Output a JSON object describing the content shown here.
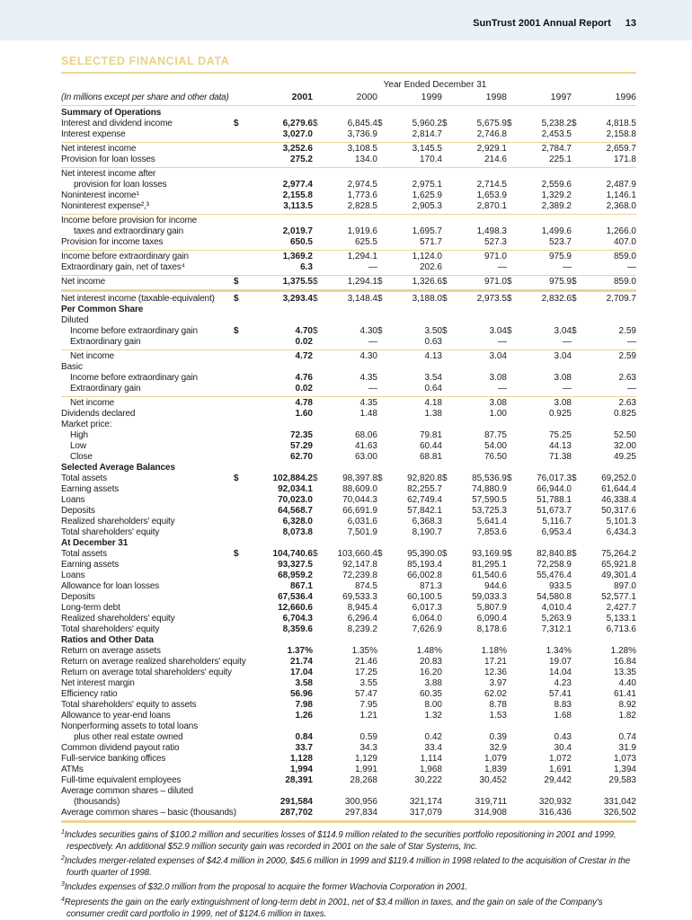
{
  "page": {
    "report_title": "SunTrust 2001 Annual Report",
    "page_number": "13"
  },
  "heading": "SELECTED FINANCIAL DATA",
  "table": {
    "period_label": "Year Ended December 31",
    "unit_note": "(In millions except per share and other data)",
    "years": [
      "2001",
      "2000",
      "1999",
      "1998",
      "1997",
      "1996"
    ],
    "rows": [
      {
        "type": "section",
        "label": "Summary of Operations"
      },
      {
        "type": "data",
        "label": "Interest and dividend income",
        "values": [
          "$ 6,279.6",
          "$ 6,845.4",
          "$ 5,960.2",
          "$ 5,675.9",
          "$ 5,238.2",
          "$ 4,818.5"
        ]
      },
      {
        "type": "data",
        "label": "Interest expense",
        "values": [
          "3,027.0",
          "3,736.9",
          "2,814.7",
          "2,746.8",
          "2,453.5",
          "2,158.8"
        ]
      },
      {
        "type": "rule",
        "weight": "thin"
      },
      {
        "type": "data",
        "label": "Net interest income",
        "values": [
          "3,252.6",
          "3,108.5",
          "3,145.5",
          "2,929.1",
          "2,784.7",
          "2,659.7"
        ]
      },
      {
        "type": "data",
        "label": "Provision for loan losses",
        "values": [
          "275.2",
          "134.0",
          "170.4",
          "214.6",
          "225.1",
          "171.8"
        ]
      },
      {
        "type": "rule",
        "weight": "thin"
      },
      {
        "type": "data",
        "label": "Net interest income after",
        "label2": "provision for loan losses",
        "values": [
          "2,977.4",
          "2,974.5",
          "2,975.1",
          "2,714.5",
          "2,559.6",
          "2,487.9"
        ]
      },
      {
        "type": "data",
        "label": "Noninterest income¹",
        "values": [
          "2,155.8",
          "1,773.6",
          "1,625.9",
          "1,653.9",
          "1,329.2",
          "1,146.1"
        ]
      },
      {
        "type": "data",
        "label": "Noninterest expense²,³",
        "values": [
          "3,113.5",
          "2,828.5",
          "2,905.3",
          "2,870.1",
          "2,389.2",
          "2,368.0"
        ]
      },
      {
        "type": "rule",
        "weight": "thin"
      },
      {
        "type": "data",
        "label": "Income before provision for income",
        "label2": "taxes and extraordinary gain",
        "values": [
          "2,019.7",
          "1,919.6",
          "1,695.7",
          "1,498.3",
          "1,499.6",
          "1,266.0"
        ]
      },
      {
        "type": "data",
        "label": "Provision for income taxes",
        "values": [
          "650.5",
          "625.5",
          "571.7",
          "527.3",
          "523.7",
          "407.0"
        ]
      },
      {
        "type": "rule",
        "weight": "thin"
      },
      {
        "type": "data",
        "label": "Income before extraordinary gain",
        "values": [
          "1,369.2",
          "1,294.1",
          "1,124.0",
          "971.0",
          "975.9",
          "859.0"
        ]
      },
      {
        "type": "data",
        "label": "Extraordinary gain, net of taxes⁴",
        "values": [
          "6.3",
          "—",
          "202.6",
          "—",
          "—",
          "—"
        ]
      },
      {
        "type": "rule",
        "weight": "thin"
      },
      {
        "type": "data",
        "label": "Net income",
        "values": [
          "$ 1,375.5",
          "$ 1,294.1",
          "$ 1,326.6",
          "$ 971.0",
          "$ 975.9",
          "$ 859.0"
        ]
      },
      {
        "type": "rule",
        "weight": "thick"
      },
      {
        "type": "data",
        "label": "Net interest income (taxable-equivalent)",
        "values": [
          "$ 3,293.4",
          "$ 3,148.4",
          "$ 3,188.0",
          "$ 2,973.5",
          "$ 2,832.6",
          "$ 2,709.7"
        ]
      },
      {
        "type": "section",
        "label": "Per Common Share"
      },
      {
        "type": "plain",
        "label": "Diluted"
      },
      {
        "type": "data",
        "indent": 1,
        "label": "Income before extraordinary gain",
        "values": [
          "$ 4.70",
          "$ 4.30",
          "$ 3.50",
          "$ 3.04",
          "$ 3.04",
          "$ 2.59"
        ]
      },
      {
        "type": "data",
        "indent": 1,
        "label": "Extraordinary gain",
        "values": [
          "0.02",
          "—",
          "0.63",
          "—",
          "—",
          "—"
        ]
      },
      {
        "type": "rule",
        "weight": "thin"
      },
      {
        "type": "data",
        "indent": 1,
        "label": "Net income",
        "values": [
          "4.72",
          "4.30",
          "4.13",
          "3.04",
          "3.04",
          "2.59"
        ]
      },
      {
        "type": "plain",
        "label": "Basic"
      },
      {
        "type": "data",
        "indent": 1,
        "label": "Income before extraordinary gain",
        "values": [
          "4.76",
          "4.35",
          "3.54",
          "3.08",
          "3.08",
          "2.63"
        ]
      },
      {
        "type": "data",
        "indent": 1,
        "label": "Extraordinary gain",
        "values": [
          "0.02",
          "—",
          "0.64",
          "—",
          "—",
          "—"
        ]
      },
      {
        "type": "rule",
        "weight": "thin"
      },
      {
        "type": "data",
        "indent": 1,
        "label": "Net income",
        "values": [
          "4.78",
          "4.35",
          "4.18",
          "3.08",
          "3.08",
          "2.63"
        ]
      },
      {
        "type": "data",
        "label": "Dividends declared",
        "values": [
          "1.60",
          "1.48",
          "1.38",
          "1.00",
          "0.925",
          "0.825"
        ]
      },
      {
        "type": "plain",
        "label": "Market price:"
      },
      {
        "type": "data",
        "indent": 1,
        "label": "High",
        "values": [
          "72.35",
          "68.06",
          "79.81",
          "87.75",
          "75.25",
          "52.50"
        ]
      },
      {
        "type": "data",
        "indent": 1,
        "label": "Low",
        "values": [
          "57.29",
          "41.63",
          "60.44",
          "54.00",
          "44.13",
          "32.00"
        ]
      },
      {
        "type": "data",
        "indent": 1,
        "label": "Close",
        "values": [
          "62.70",
          "63.00",
          "68.81",
          "76.50",
          "71.38",
          "49.25"
        ]
      },
      {
        "type": "section",
        "label": "Selected Average Balances"
      },
      {
        "type": "data",
        "label": "Total assets",
        "values": [
          "$102,884.2",
          "$ 98,397.8",
          "$92,820.8",
          "$85,536.9",
          "$76,017.3",
          "$69,252.0"
        ]
      },
      {
        "type": "data",
        "label": "Earning assets",
        "values": [
          "92,034.1",
          "88,609.0",
          "82,255.7",
          "74,880.9",
          "66,944.0",
          "61,644.4"
        ]
      },
      {
        "type": "data",
        "label": "Loans",
        "values": [
          "70,023.0",
          "70,044.3",
          "62,749.4",
          "57,590.5",
          "51,788.1",
          "46,338.4"
        ]
      },
      {
        "type": "data",
        "label": "Deposits",
        "values": [
          "64,568.7",
          "66,691.9",
          "57,842.1",
          "53,725.3",
          "51,673.7",
          "50,317.6"
        ]
      },
      {
        "type": "data",
        "label": "Realized shareholders' equity",
        "values": [
          "6,328.0",
          "6,031.6",
          "6,368.3",
          "5,641.4",
          "5,116.7",
          "5,101.3"
        ]
      },
      {
        "type": "data",
        "label": "Total shareholders' equity",
        "values": [
          "8,073.8",
          "7,501.9",
          "8,190.7",
          "7,853.6",
          "6,953.4",
          "6,434.3"
        ]
      },
      {
        "type": "section",
        "label": "At December 31"
      },
      {
        "type": "data",
        "label": "Total assets",
        "values": [
          "$104,740.6",
          "$103,660.4",
          "$95,390.0",
          "$93,169.9",
          "$82,840.8",
          "$75,264.2"
        ]
      },
      {
        "type": "data",
        "label": "Earning assets",
        "values": [
          "93,327.5",
          "92,147.8",
          "85,193.4",
          "81,295.1",
          "72,258.9",
          "65,921.8"
        ]
      },
      {
        "type": "data",
        "label": "Loans",
        "values": [
          "68,959.2",
          "72,239.8",
          "66,002.8",
          "61,540.6",
          "55,476.4",
          "49,301.4"
        ]
      },
      {
        "type": "data",
        "label": "Allowance for loan losses",
        "values": [
          "867.1",
          "874.5",
          "871.3",
          "944.6",
          "933.5",
          "897.0"
        ]
      },
      {
        "type": "data",
        "label": "Deposits",
        "values": [
          "67,536.4",
          "69,533.3",
          "60,100.5",
          "59,033.3",
          "54,580.8",
          "52,577.1"
        ]
      },
      {
        "type": "data",
        "label": "Long-term debt",
        "values": [
          "12,660.6",
          "8,945.4",
          "6,017.3",
          "5,807.9",
          "4,010.4",
          "2,427.7"
        ]
      },
      {
        "type": "data",
        "label": "Realized shareholders' equity",
        "values": [
          "6,704.3",
          "6,296.4",
          "6,064.0",
          "6,090.4",
          "5,263.9",
          "5,133.1"
        ]
      },
      {
        "type": "data",
        "label": "Total shareholders' equity",
        "values": [
          "8,359.6",
          "8,239.2",
          "7,626.9",
          "8,178.6",
          "7,312.1",
          "6,713.6"
        ]
      },
      {
        "type": "section",
        "label": "Ratios and Other Data"
      },
      {
        "type": "data",
        "label": "Return on average assets",
        "values": [
          "1.37%",
          "1.35%",
          "1.48%",
          "1.18%",
          "1.34%",
          "1.28%"
        ]
      },
      {
        "type": "data",
        "label": "Return on average realized shareholders' equity",
        "values": [
          "21.74",
          "21.46",
          "20.83",
          "17.21",
          "19.07",
          "16.84"
        ]
      },
      {
        "type": "data",
        "label": "Return on average total shareholders' equity",
        "values": [
          "17.04",
          "17.25",
          "16.20",
          "12.36",
          "14.04",
          "13.35"
        ]
      },
      {
        "type": "data",
        "label": "Net interest margin",
        "values": [
          "3.58",
          "3.55",
          "3.88",
          "3.97",
          "4.23",
          "4.40"
        ]
      },
      {
        "type": "data",
        "label": "Efficiency ratio",
        "values": [
          "56.96",
          "57.47",
          "60.35",
          "62.02",
          "57.41",
          "61.41"
        ]
      },
      {
        "type": "data",
        "label": "Total shareholders' equity to assets",
        "values": [
          "7.98",
          "7.95",
          "8.00",
          "8.78",
          "8.83",
          "8.92"
        ]
      },
      {
        "type": "data",
        "label": "Allowance to year-end loans",
        "values": [
          "1.26",
          "1.21",
          "1.32",
          "1.53",
          "1.68",
          "1.82"
        ]
      },
      {
        "type": "data",
        "label": "Nonperforming assets to total loans",
        "label2": "plus other real estate owned",
        "values": [
          "0.84",
          "0.59",
          "0.42",
          "0.39",
          "0.43",
          "0.74"
        ]
      },
      {
        "type": "data",
        "label": "Common dividend payout ratio",
        "values": [
          "33.7",
          "34.3",
          "33.4",
          "32.9",
          "30.4",
          "31.9"
        ]
      },
      {
        "type": "data",
        "label": "Full-service banking offices",
        "values": [
          "1,128",
          "1,129",
          "1,114",
          "1,079",
          "1,072",
          "1,073"
        ]
      },
      {
        "type": "data",
        "label": "ATMs",
        "values": [
          "1,994",
          "1,991",
          "1,968",
          "1,839",
          "1,691",
          "1,394"
        ]
      },
      {
        "type": "data",
        "label": "Full-time equivalent employees",
        "values": [
          "28,391",
          "28,268",
          "30,222",
          "30,452",
          "29,442",
          "29,583"
        ]
      },
      {
        "type": "data",
        "label": "Average common shares – diluted",
        "label2": "(thousands)",
        "values": [
          "291,584",
          "300,956",
          "321,174",
          "319,711",
          "320,932",
          "331,042"
        ]
      },
      {
        "type": "data",
        "label": "Average common shares – basic (thousands)",
        "values": [
          "287,702",
          "297,834",
          "317,079",
          "314,908",
          "316,436",
          "326,502"
        ]
      },
      {
        "type": "rule",
        "weight": "thick"
      }
    ]
  },
  "footnotes": [
    {
      "marker": "1",
      "text": "Includes securities gains of $100.2 million and securities losses of $114.9 million related to the securities portfolio repositioning in 2001 and 1999, respectively. An additional $52.9 million security gain was recorded in 2001 on the sale of Star Systems, Inc."
    },
    {
      "marker": "2",
      "text": "Includes merger-related expenses of $42.4 million in 2000, $45.6 million in 1999 and $119.4 million in 1998 related to the acquisition of Crestar in the fourth quarter of 1998."
    },
    {
      "marker": "3",
      "text": "Includes expenses of $32.0 million from the proposal to acquire the former Wachovia Corporation in 2001."
    },
    {
      "marker": "4",
      "text": "Represents the gain on the early extinguishment of long-term debt in 2001, net of $3.4 million in taxes, and the gain on sale of the Company's consumer credit card portfolio in 1999, net of $124.6 million in taxes."
    }
  ]
}
